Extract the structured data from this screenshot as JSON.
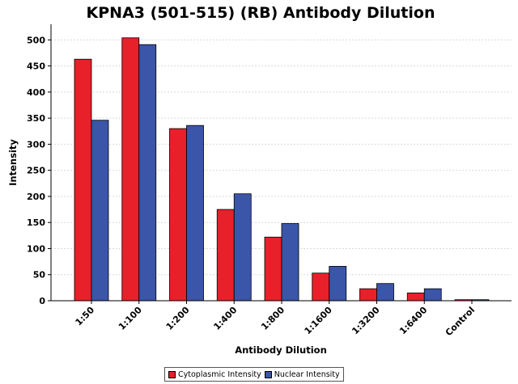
{
  "chart_data": {
    "type": "bar",
    "title": "KPNA3 (501-515) (RB) Antibody Dilution",
    "xlabel": "Antibody Dilution",
    "ylabel": "Intensity",
    "categories": [
      "1:50",
      "1:100",
      "1:200",
      "1:400",
      "1:800",
      "1:1600",
      "1:3200",
      "1:6400",
      "Control"
    ],
    "series": [
      {
        "name": "Cytoplasmic Intensity",
        "color": "#e8202a",
        "values": [
          463,
          504,
          330,
          175,
          122,
          53,
          23,
          15,
          2
        ]
      },
      {
        "name": "Nuclear Intensity",
        "color": "#3b55a8",
        "values": [
          346,
          491,
          336,
          205,
          148,
          66,
          33,
          23,
          2
        ]
      }
    ],
    "ylim": [
      0,
      530
    ],
    "yticks": [
      0,
      50,
      100,
      150,
      200,
      250,
      300,
      350,
      400,
      450,
      500
    ],
    "grid": true,
    "legend_position": "bottom"
  }
}
